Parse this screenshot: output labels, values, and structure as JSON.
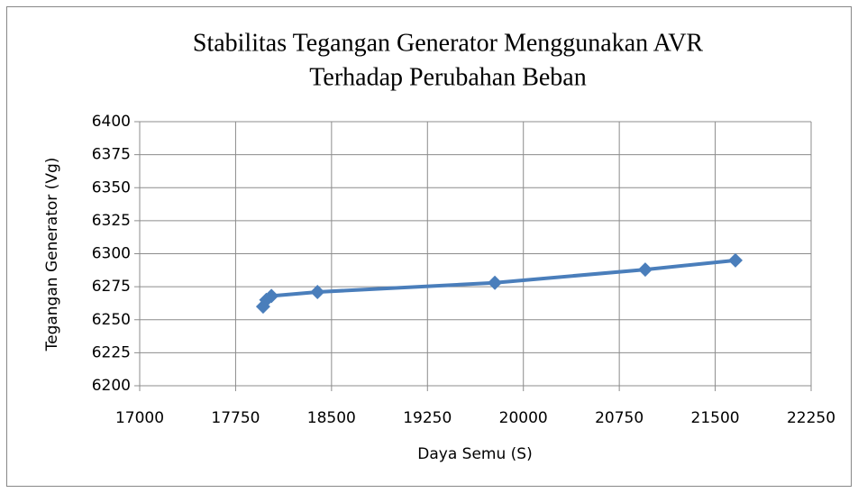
{
  "chart_data": {
    "type": "line",
    "title": [
      "Stabilitas Tegangan Generator Menggunakan AVR",
      "Terhadap Perubahan Beban"
    ],
    "x_label": "Daya Semu (S)",
    "y_label": "Tegangan Generator (Vg)",
    "x": [
      17965,
      17990,
      18030,
      18390,
      19777,
      20953,
      21658
    ],
    "series": [
      {
        "name": "Tegangan Generator (Vg)",
        "color": "#4a7ebb",
        "values": [
          6260,
          6265,
          6268,
          6271,
          6278,
          6288,
          6295
        ]
      }
    ],
    "xlim": [
      17000,
      22250
    ],
    "xticks": [
      17000,
      17750,
      18500,
      19250,
      20000,
      20750,
      21500,
      22250
    ],
    "ylim": [
      6200,
      6400
    ],
    "yticks": [
      6200,
      6225,
      6250,
      6275,
      6300,
      6325,
      6350,
      6375,
      6400
    ],
    "grid": true
  }
}
